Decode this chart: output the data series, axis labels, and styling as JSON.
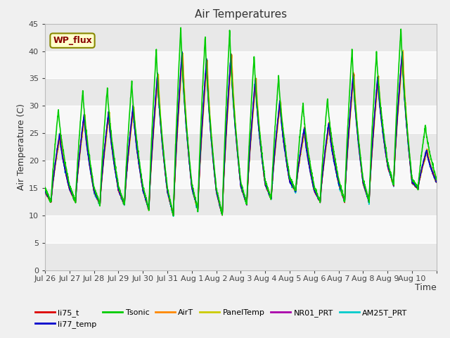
{
  "title": "Air Temperatures",
  "xlabel": "Time",
  "ylabel": "Air Temperature (C)",
  "ylim": [
    0,
    45
  ],
  "yticks": [
    0,
    5,
    10,
    15,
    20,
    25,
    30,
    35,
    40,
    45
  ],
  "background_color": "#f0f0f0",
  "plot_bg_color": "#f0f0f0",
  "band_light": "#f0f0f0",
  "band_dark": "#e0e0e0",
  "grid_color": "#ffffff",
  "annotation_text": "WP_flux",
  "annotation_bg": "#ffffcc",
  "annotation_border": "#888800",
  "legend": [
    {
      "label": "li75_t",
      "color": "#dd0000"
    },
    {
      "label": "li77_temp",
      "color": "#0000cc"
    },
    {
      "label": "Tsonic",
      "color": "#00cc00"
    },
    {
      "label": "AirT",
      "color": "#ff8800"
    },
    {
      "label": "PanelTemp",
      "color": "#cccc00"
    },
    {
      "label": "NR01_PRT",
      "color": "#aa00aa"
    },
    {
      "label": "AM25T_PRT",
      "color": "#00cccc"
    }
  ],
  "xtick_labels": [
    "Jul 26",
    "Jul 27",
    "Jul 28",
    "Jul 29",
    "Jul 30",
    "Jul 31",
    "Aug 1",
    "Aug 2",
    "Aug 3",
    "Aug 4",
    "Aug 5",
    "Aug 6",
    "Aug 7",
    "Aug 8",
    "Aug 9",
    "Aug 10"
  ],
  "day_peaks": [
    25,
    28.5,
    29,
    30,
    36,
    40,
    38.5,
    39.5,
    35,
    31,
    26,
    27,
    36,
    35.5,
    40,
    22
  ],
  "night_mins": [
    12.5,
    12.5,
    12,
    12,
    11,
    10,
    11,
    10,
    12,
    13,
    14.5,
    12.5,
    12.5,
    12.5,
    15.5,
    15
  ],
  "tsonic_extra": 4.5,
  "series_order": [
    "AM25T_PRT",
    "NR01_PRT",
    "PanelTemp",
    "AirT",
    "li75_t",
    "li77_temp",
    "Tsonic"
  ],
  "series_cfg": {
    "li75_t": {
      "color": "#dd0000",
      "lw": 1.0,
      "zorder": 5
    },
    "li77_temp": {
      "color": "#0000cc",
      "lw": 1.0,
      "zorder": 5
    },
    "Tsonic": {
      "color": "#00cc00",
      "lw": 1.2,
      "zorder": 6
    },
    "AirT": {
      "color": "#ff8800",
      "lw": 1.0,
      "zorder": 4
    },
    "PanelTemp": {
      "color": "#cccc00",
      "lw": 1.0,
      "zorder": 3
    },
    "NR01_PRT": {
      "color": "#aa00aa",
      "lw": 1.0,
      "zorder": 4
    },
    "AM25T_PRT": {
      "color": "#00cccc",
      "lw": 1.2,
      "zorder": 3
    }
  }
}
